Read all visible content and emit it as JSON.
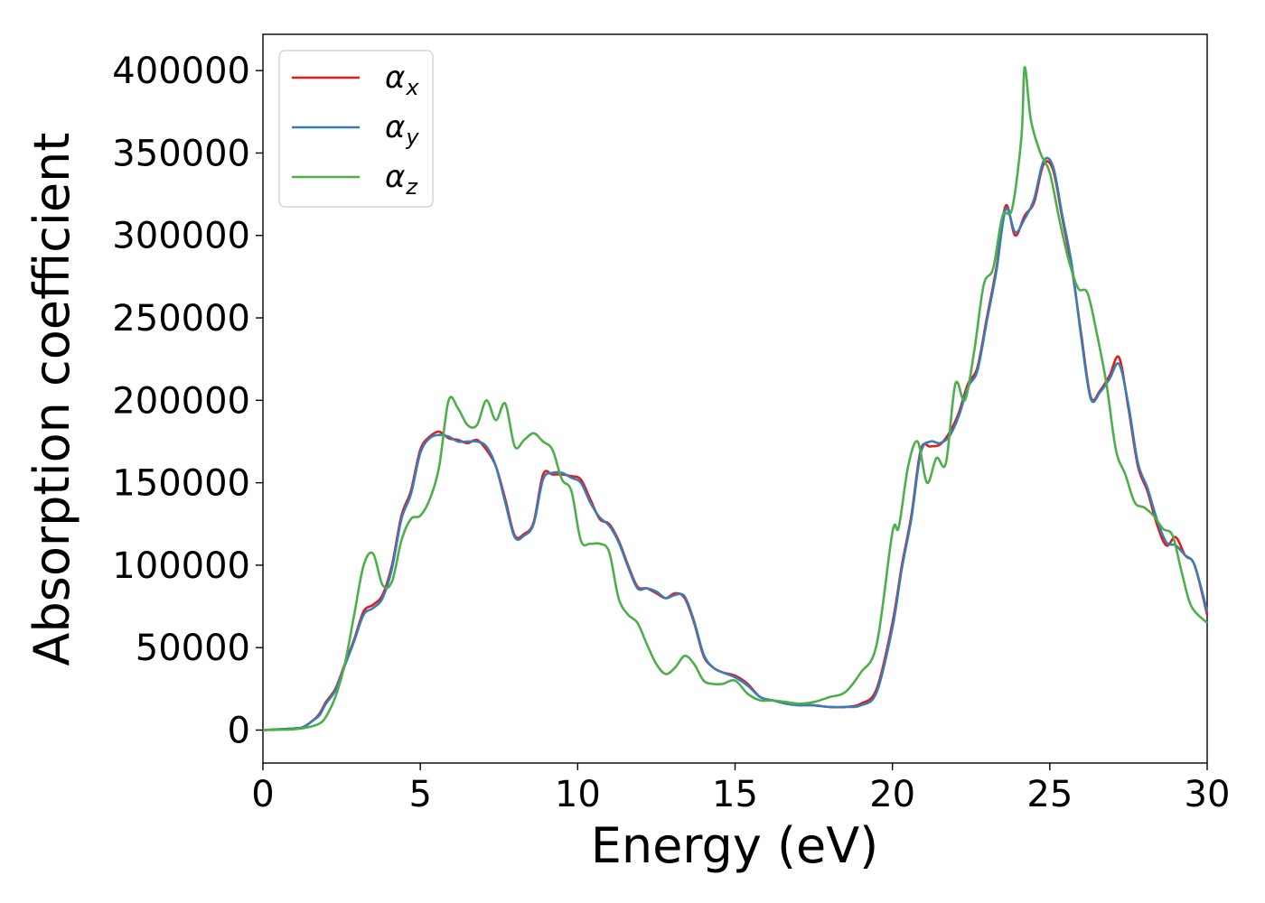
{
  "chart_data": {
    "type": "line",
    "xlabel": "Energy (eV)",
    "ylabel": "Absorption coefficient",
    "xlim": [
      0,
      30
    ],
    "ylim": [
      -20000,
      422000
    ],
    "x_ticks": [
      0,
      5,
      10,
      15,
      20,
      25,
      30
    ],
    "x_tick_labels": [
      "0",
      "5",
      "10",
      "15",
      "20",
      "25",
      "30"
    ],
    "y_ticks": [
      0,
      50000,
      100000,
      150000,
      200000,
      250000,
      300000,
      350000,
      400000
    ],
    "y_tick_labels": [
      "0",
      "50000",
      "100000",
      "150000",
      "200000",
      "250000",
      "300000",
      "350000",
      "400000"
    ],
    "grid": false,
    "legend_position": "top-left",
    "series": [
      {
        "name": "α",
        "subscript": "x",
        "color": "#e41a1c",
        "x": [
          0,
          1,
          1.3,
          1.6,
          1.8,
          2.0,
          2.3,
          2.6,
          2.9,
          3.2,
          3.5,
          3.8,
          4.1,
          4.4,
          4.7,
          5.0,
          5.3,
          5.6,
          5.9,
          6.2,
          6.5,
          6.8,
          7.1,
          7.4,
          7.7,
          8.0,
          8.3,
          8.6,
          8.9,
          9.2,
          9.5,
          9.8,
          10.1,
          10.4,
          10.7,
          11.0,
          11.3,
          11.6,
          11.9,
          12.2,
          12.5,
          12.8,
          13.1,
          13.4,
          13.7,
          14.0,
          14.3,
          14.6,
          15.0,
          15.4,
          15.8,
          16.2,
          16.6,
          17.0,
          17.5,
          18.0,
          18.5,
          19.0,
          19.5,
          20.0,
          20.3,
          20.6,
          20.9,
          21.2,
          21.5,
          21.8,
          22.1,
          22.4,
          22.7,
          23.0,
          23.3,
          23.6,
          23.9,
          24.2,
          24.5,
          24.8,
          25.1,
          25.4,
          25.7,
          26.0,
          26.3,
          26.6,
          26.9,
          27.2,
          27.5,
          27.8,
          28.1,
          28.4,
          28.7,
          29.0,
          29.3,
          29.6,
          30.0
        ],
        "y": [
          0,
          1000,
          2000,
          6000,
          10000,
          17000,
          25000,
          40000,
          55000,
          72000,
          76000,
          82000,
          100000,
          130000,
          145000,
          170000,
          178000,
          181000,
          177000,
          176000,
          174000,
          176000,
          170000,
          160000,
          140000,
          118000,
          119000,
          126000,
          155000,
          155000,
          155000,
          154000,
          152000,
          140000,
          128000,
          125000,
          115000,
          100000,
          87000,
          86000,
          83000,
          80000,
          83000,
          80000,
          65000,
          45000,
          38000,
          35000,
          33000,
          28000,
          20000,
          18000,
          17000,
          16000,
          15000,
          14000,
          14000,
          16000,
          25000,
          65000,
          100000,
          130000,
          170000,
          172000,
          173000,
          180000,
          192000,
          210000,
          220000,
          250000,
          280000,
          318000,
          300000,
          312000,
          320000,
          343000,
          340000,
          310000,
          280000,
          240000,
          202000,
          206000,
          215000,
          226000,
          195000,
          160000,
          145000,
          125000,
          112000,
          117000,
          106000,
          100000,
          70000
        ],
        "values": "same as y"
      },
      {
        "name": "α",
        "subscript": "y",
        "color": "#377eb8",
        "x": [
          0,
          1,
          1.3,
          1.6,
          1.8,
          2.0,
          2.3,
          2.6,
          2.9,
          3.2,
          3.5,
          3.8,
          4.1,
          4.4,
          4.7,
          5.0,
          5.3,
          5.6,
          5.9,
          6.2,
          6.5,
          6.8,
          7.1,
          7.4,
          7.7,
          8.0,
          8.3,
          8.6,
          8.9,
          9.2,
          9.5,
          9.8,
          10.1,
          10.4,
          10.7,
          11.0,
          11.3,
          11.6,
          11.9,
          12.2,
          12.5,
          12.8,
          13.1,
          13.4,
          13.7,
          14.0,
          14.3,
          14.6,
          15.0,
          15.4,
          15.8,
          16.2,
          16.6,
          17.0,
          17.5,
          18.0,
          18.5,
          19.0,
          19.5,
          20.0,
          20.3,
          20.6,
          20.9,
          21.2,
          21.5,
          21.8,
          22.1,
          22.4,
          22.7,
          23.0,
          23.3,
          23.6,
          23.9,
          24.2,
          24.5,
          24.8,
          25.1,
          25.4,
          25.7,
          26.0,
          26.3,
          26.6,
          26.9,
          27.2,
          27.5,
          27.8,
          28.1,
          28.4,
          28.7,
          29.0,
          29.3,
          29.6,
          30.0
        ],
        "y": [
          0,
          1000,
          2000,
          6000,
          9000,
          16000,
          24000,
          39000,
          54000,
          70000,
          74000,
          80000,
          98000,
          128000,
          143000,
          168000,
          177000,
          179000,
          178000,
          175000,
          175000,
          175000,
          172000,
          160000,
          138000,
          117000,
          118000,
          125000,
          152000,
          156000,
          156000,
          153000,
          150000,
          138000,
          129000,
          124000,
          114000,
          99000,
          86000,
          86000,
          84000,
          80000,
          82000,
          81000,
          66000,
          46000,
          38000,
          35000,
          32000,
          27000,
          20000,
          18000,
          16000,
          15000,
          15000,
          14000,
          14000,
          15000,
          23000,
          62000,
          98000,
          128000,
          168000,
          175000,
          174000,
          178000,
          190000,
          208000,
          218000,
          248000,
          278000,
          316000,
          302000,
          310000,
          322000,
          345000,
          342000,
          312000,
          282000,
          238000,
          201000,
          205000,
          213000,
          222000,
          197000,
          162000,
          147000,
          128000,
          114000,
          112000,
          106000,
          100000,
          72000
        ],
        "values": "same as y"
      },
      {
        "name": "α",
        "subscript": "z",
        "color": "#4daf4a",
        "x": [
          0,
          1,
          1.5,
          1.8,
          2.0,
          2.3,
          2.6,
          2.9,
          3.2,
          3.5,
          3.8,
          4.1,
          4.4,
          4.7,
          5.0,
          5.3,
          5.6,
          5.9,
          6.2,
          6.5,
          6.8,
          7.1,
          7.4,
          7.7,
          8.0,
          8.3,
          8.6,
          8.9,
          9.2,
          9.5,
          9.8,
          10.1,
          10.4,
          10.7,
          11.0,
          11.3,
          11.6,
          11.9,
          12.2,
          12.5,
          12.8,
          13.1,
          13.4,
          13.7,
          14.0,
          14.3,
          14.6,
          15.0,
          15.4,
          15.8,
          16.2,
          16.6,
          17.0,
          17.5,
          18.0,
          18.5,
          19.0,
          19.5,
          20.0,
          20.2,
          20.5,
          20.8,
          21.1,
          21.4,
          21.7,
          22.0,
          22.3,
          22.6,
          22.9,
          23.2,
          23.5,
          23.8,
          24.1,
          24.2,
          24.4,
          24.7,
          25.0,
          25.3,
          25.6,
          25.9,
          26.2,
          26.5,
          26.8,
          27.1,
          27.4,
          27.7,
          28.0,
          28.3,
          28.6,
          28.9,
          29.2,
          29.5,
          30.0
        ],
        "y": [
          0,
          500,
          2000,
          4000,
          8000,
          20000,
          40000,
          70000,
          100000,
          107000,
          88000,
          90000,
          115000,
          128000,
          130000,
          140000,
          160000,
          200000,
          195000,
          185000,
          185000,
          200000,
          188000,
          198000,
          172000,
          176000,
          180000,
          175000,
          170000,
          152000,
          145000,
          115000,
          113000,
          113000,
          108000,
          80000,
          70000,
          65000,
          52000,
          40000,
          34000,
          38000,
          45000,
          40000,
          30000,
          28000,
          28000,
          30000,
          22000,
          18000,
          18000,
          17000,
          16000,
          17000,
          20000,
          23000,
          35000,
          52000,
          120000,
          123000,
          160000,
          175000,
          150000,
          165000,
          162000,
          210000,
          200000,
          230000,
          270000,
          280000,
          312000,
          316000,
          360000,
          402000,
          370000,
          350000,
          338000,
          310000,
          285000,
          268000,
          265000,
          240000,
          210000,
          170000,
          155000,
          138000,
          135000,
          130000,
          122000,
          118000,
          95000,
          75000,
          65000
        ],
        "values": "same as y"
      }
    ]
  }
}
